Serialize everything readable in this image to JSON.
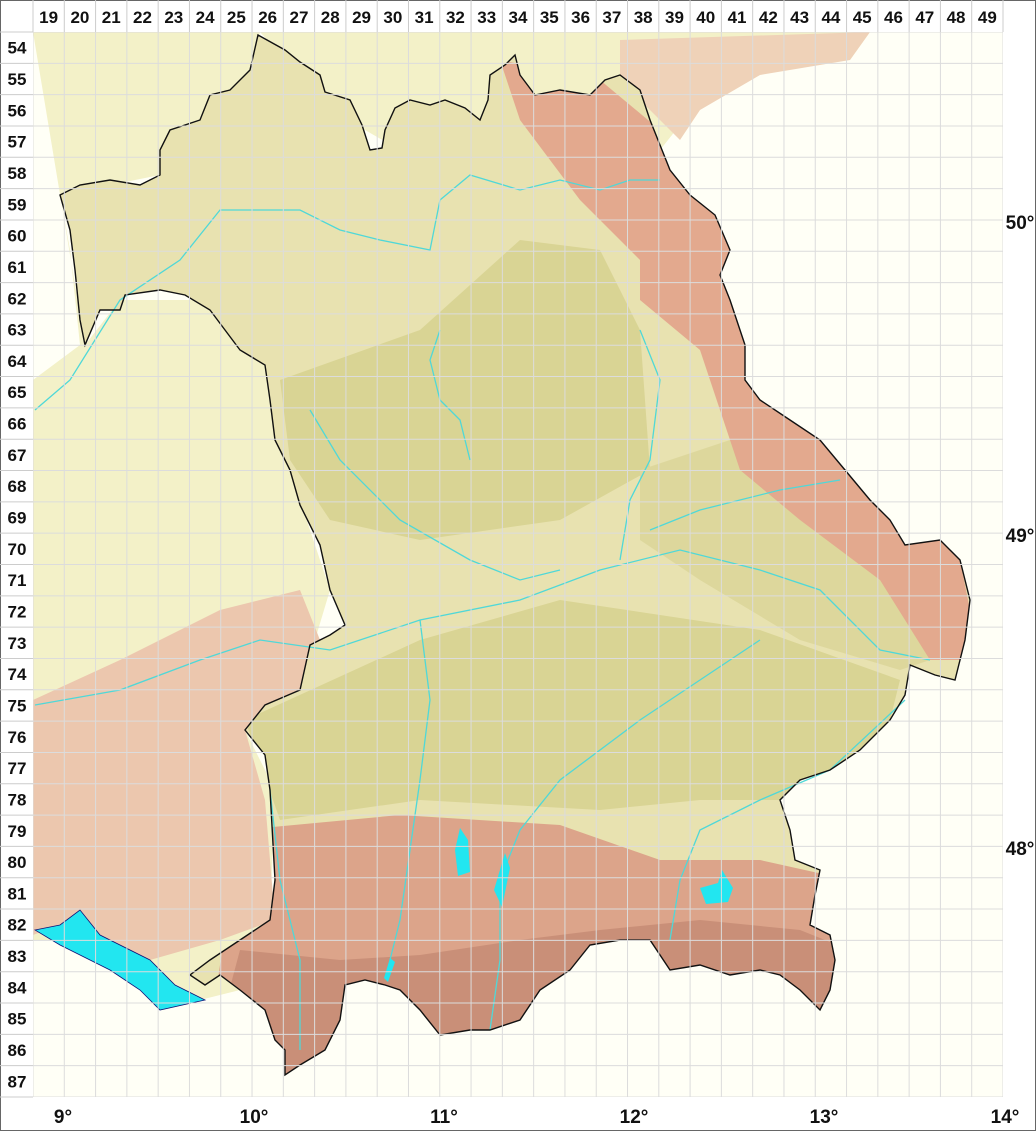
{
  "grid": {
    "columns": [
      "19",
      "20",
      "21",
      "22",
      "23",
      "24",
      "25",
      "26",
      "27",
      "28",
      "29",
      "30",
      "31",
      "32",
      "33",
      "34",
      "35",
      "36",
      "37",
      "38",
      "39",
      "40",
      "41",
      "42",
      "43",
      "44",
      "45",
      "46",
      "47",
      "48",
      "49"
    ],
    "rows": [
      "54",
      "55",
      "56",
      "57",
      "58",
      "59",
      "60",
      "61",
      "62",
      "63",
      "64",
      "65",
      "66",
      "67",
      "68",
      "69",
      "70",
      "71",
      "72",
      "73",
      "74",
      "75",
      "76",
      "77",
      "78",
      "79",
      "80",
      "81",
      "82",
      "83",
      "84",
      "85",
      "86",
      "87"
    ]
  },
  "longitude_labels": [
    "9°",
    "10°",
    "11°",
    "12°",
    "13°",
    "14°"
  ],
  "latitude_labels": [
    "50°",
    "49°",
    "48°"
  ],
  "colors": {
    "lowland": "#f3f1c8",
    "bavaria_plain": "#e8e2b0",
    "hills": "#d9d494",
    "upland": "#e3a98e",
    "alps": "#c98f78",
    "water": "#22e6f0",
    "river": "#4fd8d8",
    "border": "#111111",
    "grid": "#dcdcdc"
  }
}
